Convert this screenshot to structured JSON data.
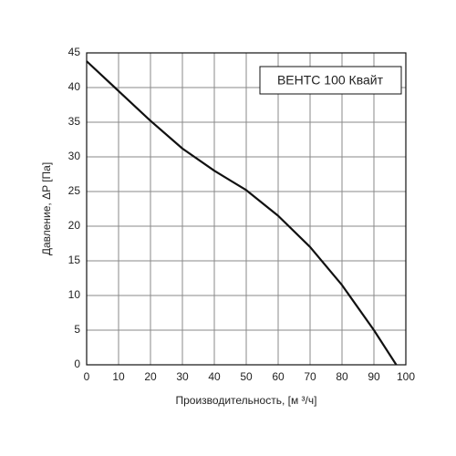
{
  "chart_data": {
    "type": "line",
    "x_label": "Производительность, [м ³/ч]",
    "y_label": "Давление, ΔP [Па]",
    "x": [
      0,
      10,
      20,
      30,
      40,
      50,
      60,
      70,
      80,
      90,
      97
    ],
    "series": [
      {
        "name": "ВЕНТС 100 Квайт",
        "color": "#111111",
        "values": [
          43.8,
          39.5,
          35.2,
          31.2,
          28,
          25.2,
          21.5,
          17,
          11.5,
          5,
          0
        ]
      }
    ],
    "xlim": [
      0,
      100
    ],
    "xticks": [
      0,
      10,
      20,
      30,
      40,
      50,
      60,
      70,
      80,
      90,
      100
    ],
    "ylim": [
      0,
      45
    ],
    "yticks": [
      0,
      5,
      10,
      15,
      20,
      25,
      30,
      35,
      40,
      45
    ],
    "grid": true,
    "legend": "upper right"
  }
}
